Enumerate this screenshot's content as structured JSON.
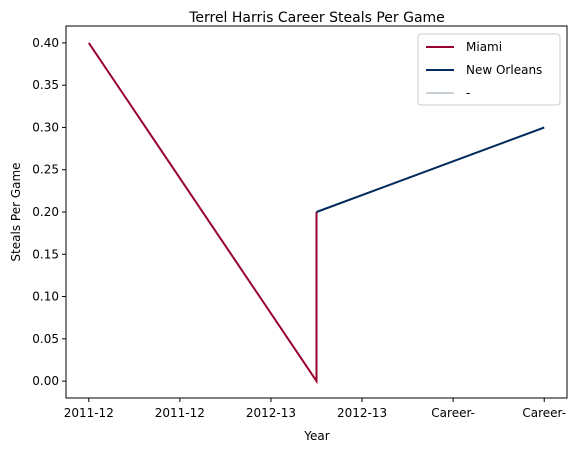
{
  "chart_data": {
    "type": "line",
    "title": "Terrel Harris Career Steals Per Game",
    "xlabel": "Year",
    "ylabel": "Steals Per Game",
    "x_tick_labels": [
      "2011-12",
      "2011-12",
      "2012-13",
      "2012-13",
      "Career-",
      "Career-"
    ],
    "xlim": [
      -0.25,
      5.25
    ],
    "ylim": [
      -0.02,
      0.42
    ],
    "y_ticks": [
      0.0,
      0.05,
      0.1,
      0.15,
      0.2,
      0.25,
      0.3,
      0.35,
      0.4
    ],
    "y_tick_labels": [
      "0.00",
      "0.05",
      "0.10",
      "0.15",
      "0.20",
      "0.25",
      "0.30",
      "0.35",
      "0.40"
    ],
    "grid": false,
    "legend_position": "top-right",
    "series": [
      {
        "name": "Miami",
        "color": "#98002E",
        "points": [
          [
            0,
            0.4
          ],
          [
            2.5,
            0.0
          ],
          [
            2.5,
            0.2
          ]
        ]
      },
      {
        "name": "New Orleans",
        "color": "#002B5C",
        "points": [
          [
            2.5,
            0.2
          ],
          [
            5,
            0.3
          ]
        ]
      },
      {
        "name": "-",
        "color": "#C4CED4",
        "points": []
      }
    ]
  }
}
